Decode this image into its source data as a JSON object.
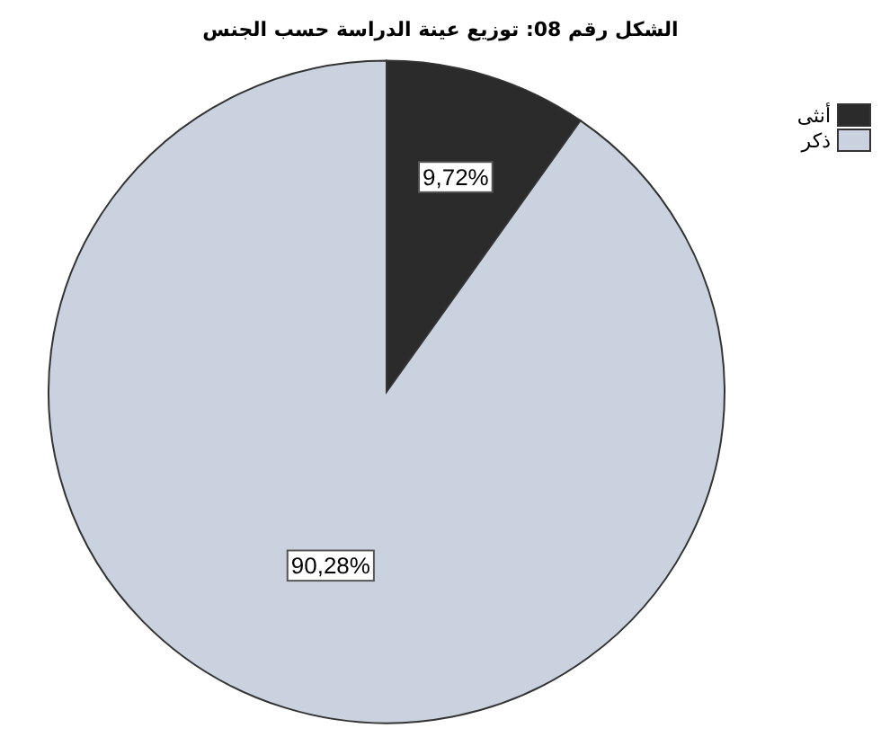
{
  "chart_data": {
    "type": "pie",
    "title": "الشكل رقم 08: توزيع عينة الدراسة حسب الجنس",
    "categories": [
      "أنثى",
      "ذكر"
    ],
    "values": [
      9.72,
      90.28
    ],
    "colors": [
      "#2b2b2b",
      "#c9d2de"
    ],
    "value_labels": [
      "9,72%",
      "90,28%"
    ],
    "legend": "top right"
  }
}
